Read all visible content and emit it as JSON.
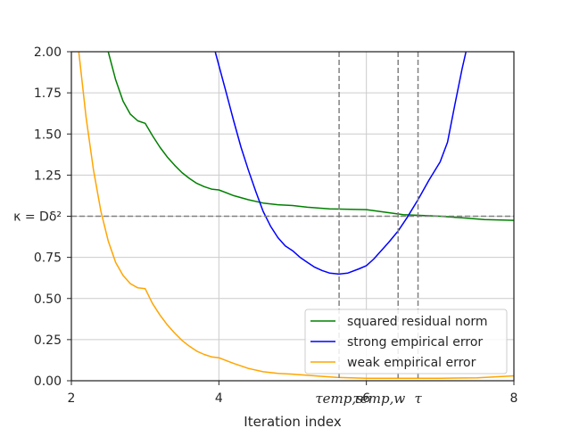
{
  "chart_data": {
    "type": "line",
    "xlabel": "Iteration index",
    "ylabel": "",
    "xlim": [
      2,
      8
    ],
    "ylim": [
      0,
      2
    ],
    "x_ticks": [
      {
        "value": 2,
        "label": "2"
      },
      {
        "value": 4,
        "label": "4"
      },
      {
        "value": 6,
        "label": "6"
      },
      {
        "value": 8,
        "label": "8"
      }
    ],
    "y_ticks": [
      {
        "value": 0.0,
        "label": "0.00"
      },
      {
        "value": 0.25,
        "label": "0.25"
      },
      {
        "value": 0.5,
        "label": "0.50"
      },
      {
        "value": 0.75,
        "label": "0.75"
      },
      {
        "value": 1.0,
        "label": "κ = Dδ²"
      },
      {
        "value": 1.25,
        "label": "1.25"
      },
      {
        "value": 1.5,
        "label": "1.50"
      },
      {
        "value": 1.75,
        "label": "1.75"
      },
      {
        "value": 2.0,
        "label": "2.00"
      }
    ],
    "grid": true,
    "legend_position": "lower-right",
    "hline": {
      "y": 1.0,
      "color": "#808080"
    },
    "vlines": [
      {
        "x": 5.63,
        "label": "τemp,s",
        "color": "#808080"
      },
      {
        "x": 6.43,
        "label": "τemp,w",
        "color": "#808080"
      },
      {
        "x": 6.7,
        "label": "τ",
        "color": "#808080"
      }
    ],
    "series": [
      {
        "name": "squared residual norm",
        "color": "#008000",
        "points": [
          [
            2.5,
            2.0
          ],
          [
            2.6,
            1.83
          ],
          [
            2.7,
            1.7
          ],
          [
            2.8,
            1.62
          ],
          [
            2.9,
            1.58
          ],
          [
            3.0,
            1.565
          ],
          [
            3.1,
            1.49
          ],
          [
            3.2,
            1.42
          ],
          [
            3.3,
            1.36
          ],
          [
            3.4,
            1.31
          ],
          [
            3.5,
            1.265
          ],
          [
            3.6,
            1.23
          ],
          [
            3.7,
            1.2
          ],
          [
            3.8,
            1.18
          ],
          [
            3.9,
            1.165
          ],
          [
            4.0,
            1.16
          ],
          [
            4.2,
            1.125
          ],
          [
            4.4,
            1.1
          ],
          [
            4.6,
            1.08
          ],
          [
            4.8,
            1.07
          ],
          [
            5.0,
            1.065
          ],
          [
            5.2,
            1.055
          ],
          [
            5.5,
            1.045
          ],
          [
            6.0,
            1.04
          ],
          [
            6.5,
            1.01
          ],
          [
            7.0,
            1.0
          ],
          [
            7.3,
            0.99
          ],
          [
            7.6,
            0.98
          ],
          [
            8.0,
            0.975
          ]
        ]
      },
      {
        "name": "strong empirical error",
        "color": "#0000ff",
        "points": [
          [
            3.95,
            2.0
          ],
          [
            4.1,
            1.75
          ],
          [
            4.2,
            1.58
          ],
          [
            4.3,
            1.42
          ],
          [
            4.4,
            1.28
          ],
          [
            4.5,
            1.15
          ],
          [
            4.6,
            1.03
          ],
          [
            4.7,
            0.94
          ],
          [
            4.8,
            0.87
          ],
          [
            4.9,
            0.82
          ],
          [
            5.0,
            0.79
          ],
          [
            5.1,
            0.75
          ],
          [
            5.2,
            0.72
          ],
          [
            5.3,
            0.69
          ],
          [
            5.4,
            0.67
          ],
          [
            5.5,
            0.655
          ],
          [
            5.63,
            0.648
          ],
          [
            5.75,
            0.655
          ],
          [
            5.9,
            0.68
          ],
          [
            6.0,
            0.7
          ],
          [
            6.1,
            0.74
          ],
          [
            6.2,
            0.79
          ],
          [
            6.3,
            0.84
          ],
          [
            6.43,
            0.91
          ],
          [
            6.55,
            0.99
          ],
          [
            6.7,
            1.1
          ],
          [
            6.85,
            1.22
          ],
          [
            7.0,
            1.33
          ],
          [
            7.1,
            1.45
          ],
          [
            7.2,
            1.68
          ],
          [
            7.3,
            1.9
          ],
          [
            7.35,
            2.0
          ]
        ]
      },
      {
        "name": "weak empirical error",
        "color": "#ffa500",
        "points": [
          [
            2.1,
            2.0
          ],
          [
            2.2,
            1.6
          ],
          [
            2.3,
            1.28
          ],
          [
            2.4,
            1.03
          ],
          [
            2.5,
            0.85
          ],
          [
            2.6,
            0.72
          ],
          [
            2.7,
            0.64
          ],
          [
            2.8,
            0.59
          ],
          [
            2.9,
            0.565
          ],
          [
            3.0,
            0.56
          ],
          [
            3.1,
            0.47
          ],
          [
            3.2,
            0.4
          ],
          [
            3.3,
            0.34
          ],
          [
            3.4,
            0.29
          ],
          [
            3.5,
            0.245
          ],
          [
            3.6,
            0.21
          ],
          [
            3.7,
            0.18
          ],
          [
            3.8,
            0.16
          ],
          [
            3.9,
            0.145
          ],
          [
            4.0,
            0.14
          ],
          [
            4.2,
            0.105
          ],
          [
            4.4,
            0.075
          ],
          [
            4.6,
            0.055
          ],
          [
            4.8,
            0.045
          ],
          [
            5.0,
            0.04
          ],
          [
            5.3,
            0.03
          ],
          [
            5.6,
            0.02
          ],
          [
            6.0,
            0.015
          ],
          [
            6.5,
            0.015
          ],
          [
            7.0,
            0.015
          ],
          [
            7.5,
            0.018
          ],
          [
            8.0,
            0.03
          ]
        ]
      }
    ]
  }
}
